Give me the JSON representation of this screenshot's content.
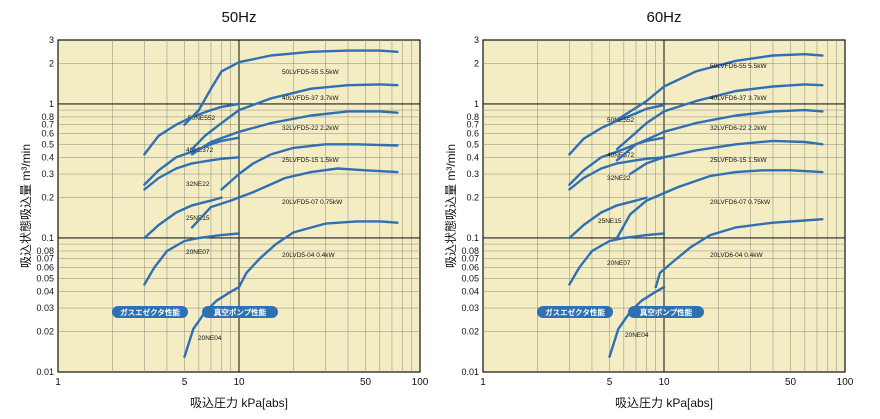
{
  "chart_data": [
    {
      "type": "line",
      "title": "50Hz",
      "xlabel": "吸込圧力 kPa[abs]",
      "ylabel": "吸込状態吸込量 m³/min",
      "xscale": "log",
      "yscale": "log",
      "xlim": [
        1,
        100
      ],
      "ylim": [
        0.01,
        3
      ],
      "x_ticks": [
        "1",
        "5",
        "10",
        "50",
        "100"
      ],
      "y_ticks": [
        "3",
        "2",
        "1",
        "0.8",
        "0.7",
        "0.6",
        "0.5",
        "0.4",
        "0.3",
        "0.2",
        "0.1",
        "0.08",
        "0.07",
        "0.06",
        "0.05",
        "0.04",
        "0.03",
        "0.02",
        "0.01"
      ],
      "grid": true,
      "badges": [
        "ガスエゼクタ性能",
        "真空ポンプ性能"
      ],
      "series": [
        {
          "name": "50NE552",
          "points": [
            [
              3,
              0.42
            ],
            [
              3.6,
              0.58
            ],
            [
              4.5,
              0.7
            ],
            [
              5.5,
              0.8
            ],
            [
              7,
              0.9
            ],
            [
              8,
              0.95
            ],
            [
              10,
              1.0
            ]
          ]
        },
        {
          "name": "40NE372",
          "points": [
            [
              3,
              0.25
            ],
            [
              3.6,
              0.32
            ],
            [
              4.5,
              0.4
            ],
            [
              5.5,
              0.44
            ],
            [
              7,
              0.5
            ],
            [
              8,
              0.53
            ],
            [
              10,
              0.56
            ]
          ]
        },
        {
          "name": "32NE22",
          "points": [
            [
              3,
              0.23
            ],
            [
              3.6,
              0.28
            ],
            [
              4.5,
              0.33
            ],
            [
              5.5,
              0.36
            ],
            [
              7,
              0.38
            ],
            [
              8,
              0.39
            ],
            [
              10,
              0.4
            ]
          ]
        },
        {
          "name": "25NE15",
          "points": [
            [
              3,
              0.1
            ],
            [
              3.6,
              0.125
            ],
            [
              4.5,
              0.155
            ],
            [
              5.5,
              0.175
            ],
            [
              7,
              0.19
            ],
            [
              8,
              0.2
            ]
          ]
        },
        {
          "name": "20NE07",
          "points": [
            [
              3,
              0.045
            ],
            [
              3.4,
              0.06
            ],
            [
              4,
              0.08
            ],
            [
              5,
              0.095
            ],
            [
              6,
              0.1
            ],
            [
              8,
              0.105
            ],
            [
              10,
              0.108
            ]
          ]
        },
        {
          "name": "20NE04",
          "points": [
            [
              5,
              0.013
            ],
            [
              5.6,
              0.021
            ],
            [
              6.5,
              0.028
            ],
            [
              7.5,
              0.034
            ],
            [
              8.8,
              0.039
            ],
            [
              10,
              0.043
            ]
          ]
        },
        {
          "name": "50LVFD5-55 5.5kW",
          "points": [
            [
              5,
              0.7
            ],
            [
              6,
              0.9
            ],
            [
              7,
              1.3
            ],
            [
              8,
              1.75
            ],
            [
              10,
              2.05
            ],
            [
              15,
              2.3
            ],
            [
              25,
              2.45
            ],
            [
              40,
              2.5
            ],
            [
              60,
              2.5
            ],
            [
              75,
              2.45
            ]
          ]
        },
        {
          "name": "40LVFD5-37 3.7kW",
          "points": [
            [
              5.5,
              0.46
            ],
            [
              6.5,
              0.58
            ],
            [
              8,
              0.72
            ],
            [
              10,
              0.9
            ],
            [
              15,
              1.1
            ],
            [
              25,
              1.3
            ],
            [
              40,
              1.38
            ],
            [
              60,
              1.4
            ],
            [
              75,
              1.38
            ]
          ]
        },
        {
          "name": "32LVFD5-22 2.2kW",
          "points": [
            [
              5.5,
              0.42
            ],
            [
              7,
              0.52
            ],
            [
              10,
              0.62
            ],
            [
              15,
              0.72
            ],
            [
              25,
              0.82
            ],
            [
              40,
              0.88
            ],
            [
              60,
              0.88
            ],
            [
              75,
              0.86
            ]
          ]
        },
        {
          "name": "25LVFD5-15 1.5kW",
          "points": [
            [
              8,
              0.23
            ],
            [
              10,
              0.3
            ],
            [
              12,
              0.36
            ],
            [
              15,
              0.42
            ],
            [
              20,
              0.47
            ],
            [
              30,
              0.5
            ],
            [
              45,
              0.5
            ],
            [
              75,
              0.49
            ]
          ]
        },
        {
          "name": "20LVFD5-07 0.75kW",
          "points": [
            [
              5.5,
              0.12
            ],
            [
              7,
              0.17
            ],
            [
              9,
              0.19
            ],
            [
              12,
              0.22
            ],
            [
              18,
              0.28
            ],
            [
              25,
              0.31
            ],
            [
              35,
              0.33
            ],
            [
              50,
              0.32
            ],
            [
              75,
              0.31
            ]
          ]
        },
        {
          "name": "20LVD5-04 0.4kW",
          "points": [
            [
              10,
              0.043
            ],
            [
              11,
              0.055
            ],
            [
              13,
              0.07
            ],
            [
              16,
              0.09
            ],
            [
              20,
              0.11
            ],
            [
              30,
              0.128
            ],
            [
              45,
              0.133
            ],
            [
              60,
              0.133
            ],
            [
              75,
              0.13
            ]
          ]
        }
      ]
    },
    {
      "type": "line",
      "title": "60Hz",
      "xlabel": "吸込圧力 kPa[abs]",
      "ylabel": "吸込状態吸込量 m³/min",
      "xscale": "log",
      "yscale": "log",
      "xlim": [
        1,
        100
      ],
      "ylim": [
        0.01,
        3
      ],
      "x_ticks": [
        "1",
        "5",
        "10",
        "50",
        "100"
      ],
      "y_ticks": [
        "3",
        "2",
        "1",
        "0.8",
        "0.7",
        "0.6",
        "0.5",
        "0.4",
        "0.3",
        "0.2",
        "0.1",
        "0.08",
        "0.07",
        "0.06",
        "0.05",
        "0.04",
        "0.03",
        "0.02",
        "0.01"
      ],
      "grid": true,
      "badges": [
        "ガスエゼクタ性能",
        "真空ポンプ性能"
      ],
      "series": [
        {
          "name": "50NE552",
          "points": [
            [
              3,
              0.42
            ],
            [
              3.6,
              0.55
            ],
            [
              4.5,
              0.66
            ],
            [
              5.5,
              0.75
            ],
            [
              7,
              0.85
            ],
            [
              8,
              0.92
            ],
            [
              10,
              0.98
            ]
          ]
        },
        {
          "name": "40NE372",
          "points": [
            [
              3,
              0.25
            ],
            [
              3.6,
              0.32
            ],
            [
              4.5,
              0.4
            ],
            [
              5.5,
              0.44
            ],
            [
              7,
              0.5
            ],
            [
              8,
              0.53
            ],
            [
              10,
              0.56
            ]
          ]
        },
        {
          "name": "32NE22",
          "points": [
            [
              3,
              0.23
            ],
            [
              3.6,
              0.28
            ],
            [
              4.5,
              0.33
            ],
            [
              5.5,
              0.36
            ],
            [
              7,
              0.38
            ],
            [
              8,
              0.39
            ],
            [
              10,
              0.4
            ]
          ]
        },
        {
          "name": "25NE15",
          "points": [
            [
              3,
              0.1
            ],
            [
              3.6,
              0.125
            ],
            [
              4.5,
              0.155
            ],
            [
              5.5,
              0.175
            ],
            [
              7,
              0.19
            ],
            [
              8,
              0.2
            ]
          ]
        },
        {
          "name": "20NE07",
          "points": [
            [
              3,
              0.045
            ],
            [
              3.4,
              0.06
            ],
            [
              4,
              0.08
            ],
            [
              5,
              0.095
            ],
            [
              6,
              0.1
            ],
            [
              8,
              0.105
            ],
            [
              10,
              0.108
            ]
          ]
        },
        {
          "name": "20NE04",
          "points": [
            [
              5,
              0.013
            ],
            [
              5.6,
              0.021
            ],
            [
              6.5,
              0.028
            ],
            [
              7.5,
              0.034
            ],
            [
              8.8,
              0.039
            ],
            [
              10,
              0.043
            ]
          ]
        },
        {
          "name": "50LVFD6-55 5.5kW",
          "points": [
            [
              5,
              0.7
            ],
            [
              6,
              0.82
            ],
            [
              8,
              1.05
            ],
            [
              10,
              1.35
            ],
            [
              15,
              1.75
            ],
            [
              25,
              2.1
            ],
            [
              40,
              2.3
            ],
            [
              60,
              2.35
            ],
            [
              75,
              2.3
            ]
          ]
        },
        {
          "name": "40LVFD6-37 3.7kW",
          "points": [
            [
              5.5,
              0.46
            ],
            [
              6.5,
              0.56
            ],
            [
              8,
              0.72
            ],
            [
              10,
              0.88
            ],
            [
              15,
              1.05
            ],
            [
              25,
              1.25
            ],
            [
              40,
              1.35
            ],
            [
              60,
              1.4
            ],
            [
              75,
              1.38
            ]
          ]
        },
        {
          "name": "32LVFD6-22 2.2kW",
          "points": [
            [
              5.5,
              0.38
            ],
            [
              7,
              0.5
            ],
            [
              10,
              0.62
            ],
            [
              15,
              0.72
            ],
            [
              25,
              0.82
            ],
            [
              40,
              0.88
            ],
            [
              60,
              0.9
            ],
            [
              75,
              0.88
            ]
          ]
        },
        {
          "name": "25LVFD6-15 1.5kW",
          "points": [
            [
              6.5,
              0.3
            ],
            [
              8,
              0.36
            ],
            [
              10,
              0.4
            ],
            [
              15,
              0.45
            ],
            [
              25,
              0.5
            ],
            [
              40,
              0.53
            ],
            [
              60,
              0.52
            ],
            [
              75,
              0.5
            ]
          ]
        },
        {
          "name": "20LVFD6-07 0.75kW",
          "points": [
            [
              5.5,
              0.1
            ],
            [
              6.5,
              0.15
            ],
            [
              8,
              0.19
            ],
            [
              12,
              0.24
            ],
            [
              18,
              0.29
            ],
            [
              25,
              0.31
            ],
            [
              35,
              0.32
            ],
            [
              50,
              0.32
            ],
            [
              75,
              0.31
            ]
          ]
        },
        {
          "name": "20LVD6-04 0.4kW",
          "points": [
            [
              9,
              0.043
            ],
            [
              9.5,
              0.055
            ],
            [
              11,
              0.065
            ],
            [
              14,
              0.085
            ],
            [
              18,
              0.105
            ],
            [
              25,
              0.12
            ],
            [
              40,
              0.13
            ],
            [
              60,
              0.135
            ],
            [
              75,
              0.138
            ]
          ]
        }
      ]
    }
  ]
}
